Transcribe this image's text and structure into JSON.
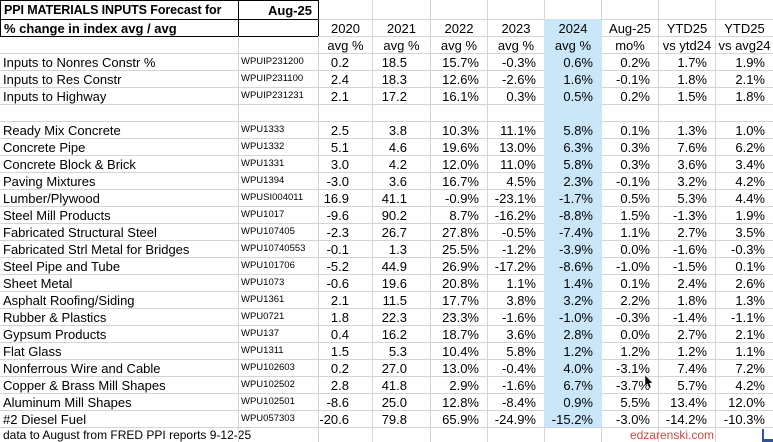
{
  "title": "PPI MATERIALS INPUTS Forecast for",
  "forecast_month": "Aug-25",
  "subtitle": "% change in index avg / avg",
  "footer_note": "data to August from FRED PPI reports 9-12-25",
  "watermark": "edzarenski.com",
  "colors": {
    "highlight_2024_fill": "#c9e7f8",
    "gridline": "#d4d4d4",
    "watermark_red": "#d04a42",
    "title_border": "#000000"
  },
  "columns": [
    {
      "year": "2020",
      "sub": "avg %"
    },
    {
      "year": "2021",
      "sub": "avg %"
    },
    {
      "year": "2022",
      "sub": "avg %"
    },
    {
      "year": "2023",
      "sub": "avg %"
    },
    {
      "year": "2024",
      "sub": "avg %",
      "highlight": true
    },
    {
      "year": "Aug-25",
      "sub": "mo%"
    },
    {
      "year": "YTD25",
      "sub": "vs ytd24"
    },
    {
      "year": "YTD25",
      "sub": "vs avg24"
    }
  ],
  "rows": [
    {
      "name": "Inputs to Nonres Constr %",
      "code": "WPUIP231200",
      "values": [
        "0.2",
        "18.5",
        "15.7%",
        "-0.3%",
        "0.6%",
        "0.2%",
        "1.7%",
        "1.9%"
      ]
    },
    {
      "name": "Inputs to Res Constr",
      "code": "WPUIP231100",
      "values": [
        "2.4",
        "18.3",
        "12.6%",
        "-2.6%",
        "1.6%",
        "-0.1%",
        "1.8%",
        "2.1%"
      ]
    },
    {
      "name": "Inputs to Highway",
      "code": "WPUIP231231",
      "values": [
        "2.1",
        "17.2",
        "16.1%",
        "0.3%",
        "0.5%",
        "0.2%",
        "1.5%",
        "1.8%"
      ]
    },
    {
      "blank": true
    },
    {
      "name": "Ready Mix Concrete",
      "code": "WPU1333",
      "values": [
        "2.5",
        "3.8",
        "10.3%",
        "11.1%",
        "5.8%",
        "0.1%",
        "1.3%",
        "1.0%"
      ]
    },
    {
      "name": "Concrete Pipe",
      "code": "WPU1332",
      "values": [
        "5.1",
        "4.6",
        "19.6%",
        "13.0%",
        "6.3%",
        "0.3%",
        "7.6%",
        "6.2%"
      ]
    },
    {
      "name": "Concrete Block & Brick",
      "code": "WPU1331",
      "values": [
        "3.0",
        "4.2",
        "12.0%",
        "11.0%",
        "5.8%",
        "0.3%",
        "3.6%",
        "3.4%"
      ]
    },
    {
      "name": "Paving Mixtures",
      "code": "WPU1394",
      "values": [
        "-3.0",
        "3.6",
        "16.7%",
        "4.5%",
        "2.3%",
        "-0.1%",
        "3.2%",
        "4.2%"
      ]
    },
    {
      "name": "Lumber/Plywood",
      "code": "WPUSI004011",
      "values": [
        "16.9",
        "41.1",
        "-0.9%",
        "-23.1%",
        "-1.7%",
        "0.5%",
        "5.3%",
        "4.4%"
      ]
    },
    {
      "name": "Steel Mill Products",
      "code": "WPU1017",
      "values": [
        "-9.6",
        "90.2",
        "8.7%",
        "-16.2%",
        "-8.8%",
        "1.5%",
        "-1.3%",
        "1.9%"
      ]
    },
    {
      "name": "Fabricated Structural Steel",
      "code": "WPU107405",
      "values": [
        "-2.3",
        "26.7",
        "27.8%",
        "-0.5%",
        "-7.4%",
        "1.1%",
        "2.7%",
        "3.5%"
      ]
    },
    {
      "name": "Fabricated Strl Metal for Bridges",
      "code": "WPU10740553",
      "values": [
        "-0.1",
        "1.3",
        "25.5%",
        "-1.2%",
        "-3.9%",
        "0.0%",
        "-1.6%",
        "-0.3%"
      ]
    },
    {
      "name": "Steel Pipe and Tube",
      "code": "WPU101706",
      "values": [
        "-5.2",
        "44.9",
        "26.9%",
        "-17.2%",
        "-8.6%",
        "-1.0%",
        "-1.5%",
        "0.1%"
      ]
    },
    {
      "name": "Sheet Metal",
      "code": "WPU1073",
      "values": [
        "-0.6",
        "19.6",
        "20.8%",
        "1.1%",
        "1.4%",
        "0.1%",
        "2.4%",
        "2.6%"
      ]
    },
    {
      "name": "Asphalt Roofing/Siding",
      "code": "WPU1361",
      "values": [
        "2.1",
        "11.5",
        "17.7%",
        "3.8%",
        "3.2%",
        "2.2%",
        "1.8%",
        "1.3%"
      ]
    },
    {
      "name": "Rubber & Plastics",
      "code": "WPU0721",
      "values": [
        "1.8",
        "22.3",
        "23.3%",
        "-1.6%",
        "-1.0%",
        "-0.3%",
        "-1.4%",
        "-1.1%"
      ]
    },
    {
      "name": "Gypsum Products",
      "code": "WPU137",
      "values": [
        "0.4",
        "16.2",
        "18.7%",
        "3.6%",
        "2.8%",
        "0.0%",
        "2.7%",
        "2.1%"
      ]
    },
    {
      "name": "Flat Glass",
      "code": "WPU1311",
      "values": [
        "1.5",
        "5.3",
        "10.4%",
        "5.8%",
        "1.2%",
        "1.2%",
        "1.2%",
        "1.1%"
      ]
    },
    {
      "name": "Nonferrous Wire and Cable",
      "code": "WPU102603",
      "values": [
        "0.2",
        "27.0",
        "13.0%",
        "-0.4%",
        "4.0%",
        "-3.1%",
        "7.4%",
        "7.2%"
      ]
    },
    {
      "name": "Copper & Brass Mill Shapes",
      "code": "WPU102502",
      "values": [
        "2.8",
        "41.8",
        "2.9%",
        "-1.6%",
        "6.7%",
        "-3.7%",
        "5.7%",
        "4.2%"
      ]
    },
    {
      "name": "Aluminum Mill Shapes",
      "code": "WPU102501",
      "values": [
        "-8.6",
        "25.0",
        "12.8%",
        "-8.4%",
        "0.9%",
        "5.5%",
        "13.4%",
        "12.0%"
      ]
    },
    {
      "name": "#2 Diesel Fuel",
      "code": "WPU057303",
      "values": [
        "-20.6",
        "79.8",
        "65.9%",
        "-24.9%",
        "-15.2%",
        "-3.0%",
        "-14.2%",
        "-10.3%"
      ]
    }
  ]
}
